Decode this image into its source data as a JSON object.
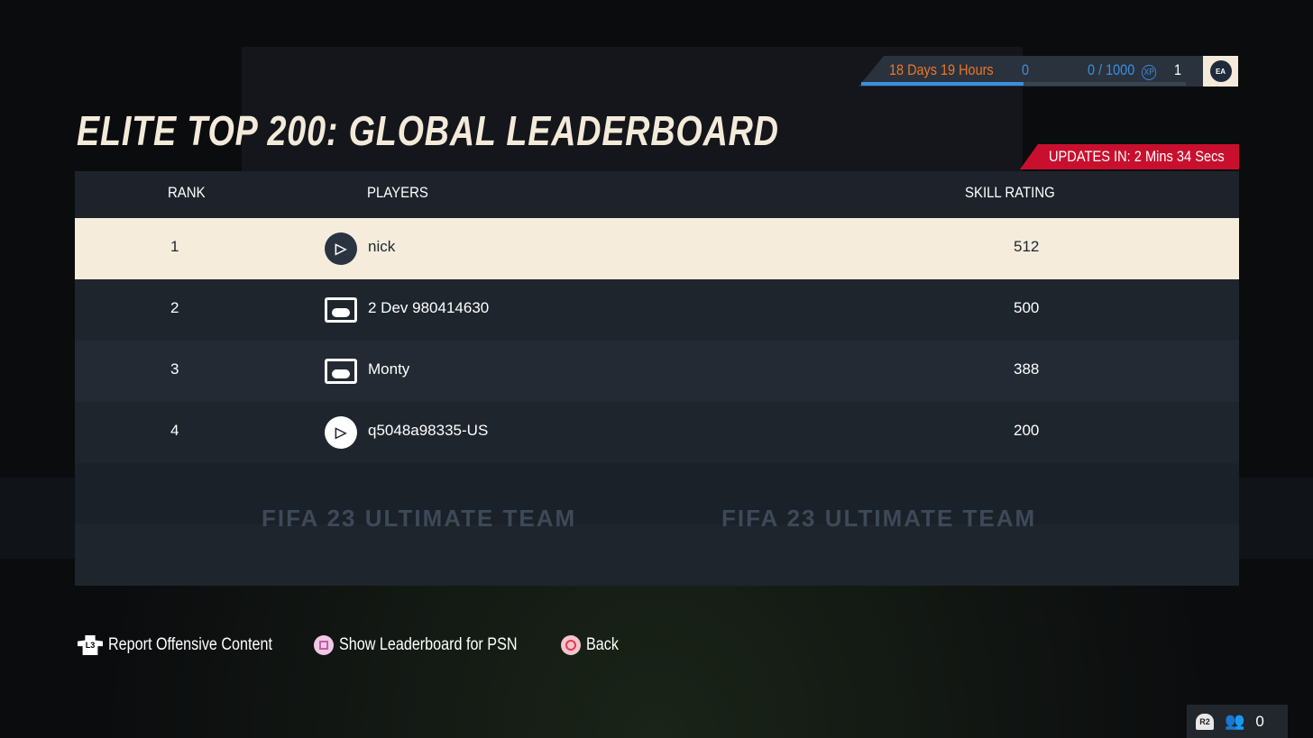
{
  "title": "ELITE TOP 200: GLOBAL LEADERBOARD",
  "season": {
    "timer": "18 Days 19 Hours",
    "level_start": "0",
    "xp": "0 / 1000",
    "xp_badge": "XP",
    "level_next": "1",
    "progress": 0.5,
    "brand_logo": "EA SPORTS"
  },
  "updates": "UPDATES IN: 2 Mins 34 Secs",
  "columns": {
    "rank": "RANK",
    "players": "PLAYERS",
    "skill": "SKILL RATING"
  },
  "rows": [
    {
      "rank": "1",
      "platform": "playstation-icon",
      "name": "nick",
      "skill": "512"
    },
    {
      "rank": "2",
      "platform": "tv-controller-icon",
      "name": "2 Dev 980414630",
      "skill": "500"
    },
    {
      "rank": "3",
      "platform": "tv-controller-icon",
      "name": "Monty",
      "skill": "388"
    },
    {
      "rank": "4",
      "platform": "playstation-icon",
      "name": "q5048a98335-US",
      "skill": "200"
    }
  ],
  "footer": {
    "report": "Report Offensive Content",
    "report_key": "L3",
    "show_psn": "Show Leaderboard for PSN",
    "back": "Back"
  },
  "corner": {
    "key": "R2",
    "friends_count": "0"
  },
  "watermark": "FIFA 23 ULTIMATE TEAM",
  "colors": {
    "accent_red": "#c8102e",
    "timer_orange": "#e8782a",
    "xp_blue": "#3b8fe0",
    "highlight": "#f5ecdc"
  }
}
